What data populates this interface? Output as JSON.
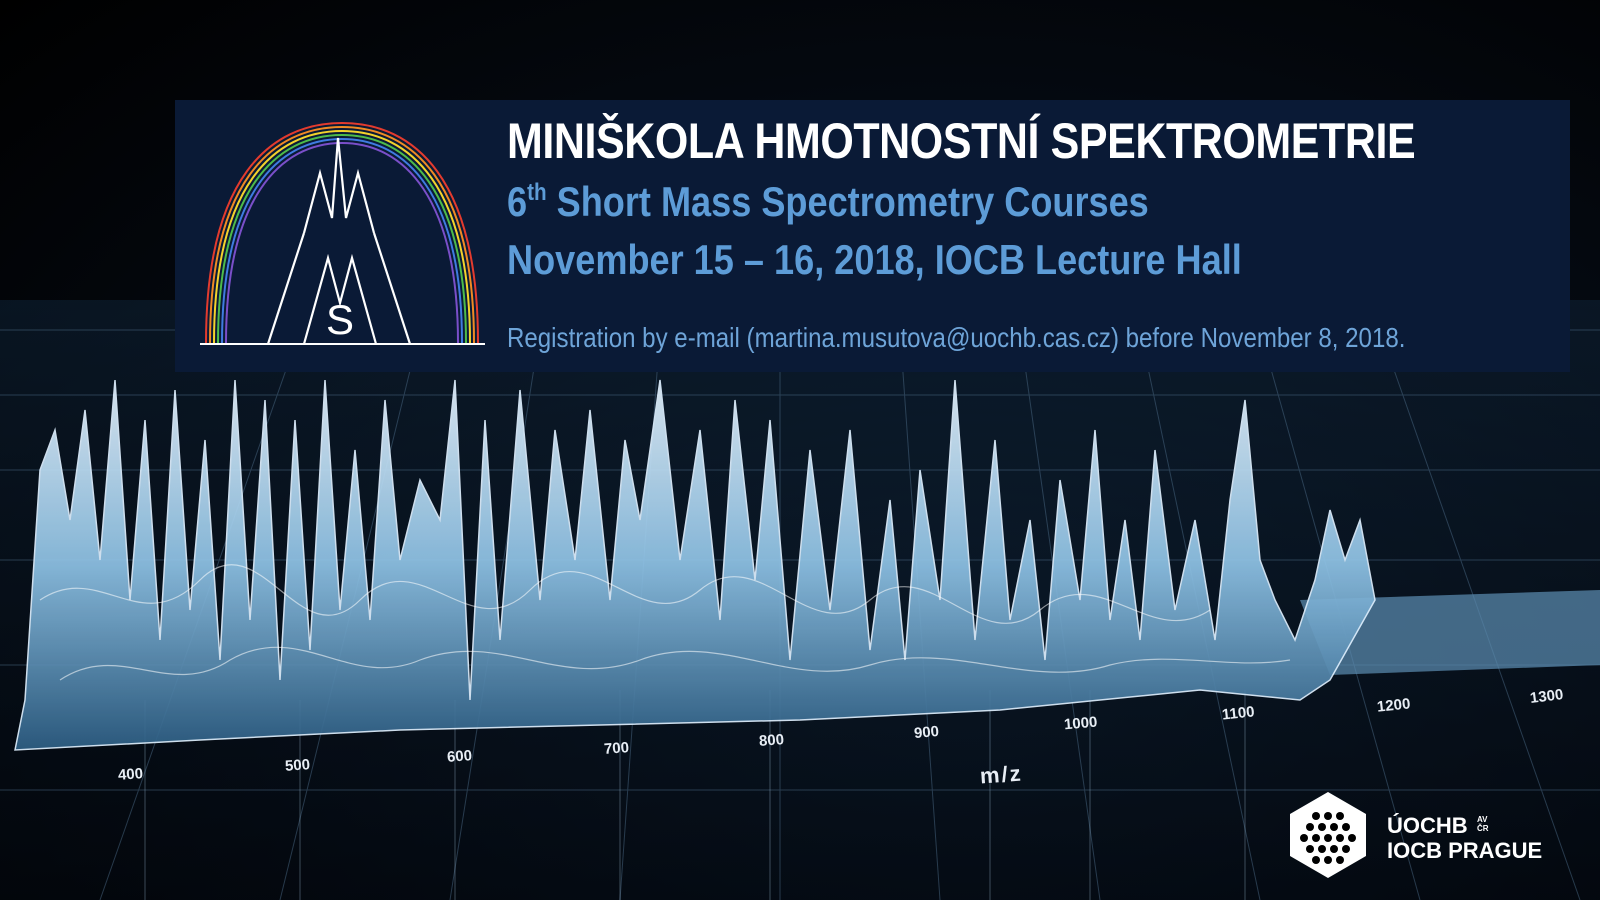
{
  "banner": {
    "title": "MINIŠKOLA HMOTNOSTNÍ SPEKTROMETRIE",
    "subtitle_ordinal": "6",
    "subtitle_ordinal_suffix": "th",
    "subtitle_rest": " Short Mass Spectrometry Courses",
    "dates": "November 15 – 16, 2018, IOCB Lecture Hall",
    "registration": "Registration by e-mail (martina.musutova@uochb.cas.cz) before November 8, 2018.",
    "logo_letter": "S",
    "colors": {
      "background": "#0a1a36",
      "title": "#ffffff",
      "accent": "#5d9cd7"
    }
  },
  "spectrum_axis": {
    "ticks": [
      "400",
      "500",
      "600",
      "700",
      "800",
      "900",
      "1000",
      "1100",
      "1200",
      "1300"
    ],
    "label": "m/z"
  },
  "institution": {
    "line1": "ÚOCHB",
    "superscript_line1": "AV",
    "superscript_line2": "ČR",
    "line2": "IOCB PRAGUE"
  }
}
